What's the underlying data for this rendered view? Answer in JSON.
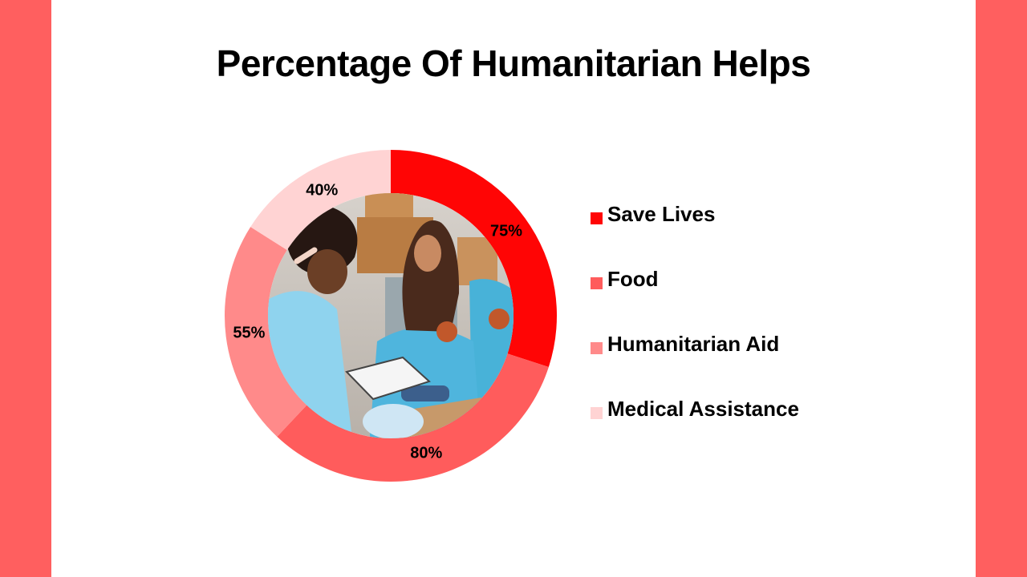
{
  "colors": {
    "side_bar": "#ff5f5f",
    "save_lives": "#ff0505",
    "food": "#ff5c5c",
    "humanitarian_aid": "#ff8a8a",
    "medical_assistance": "#ffd3d3"
  },
  "chart_data": {
    "type": "pie",
    "variant": "donut with photo in center",
    "title": "Percentage Of Humanitarian Helps",
    "categories": [
      "Save Lives",
      "Food",
      "Humanitarian Aid",
      "Medical Assistance"
    ],
    "values": [
      75,
      80,
      55,
      40
    ],
    "value_labels": [
      "75%",
      "80%",
      "55%",
      "40%"
    ],
    "colors": [
      "#ff0505",
      "#ff5c5c",
      "#ff8a8a",
      "#ffd3d3"
    ],
    "legend": "right"
  }
}
